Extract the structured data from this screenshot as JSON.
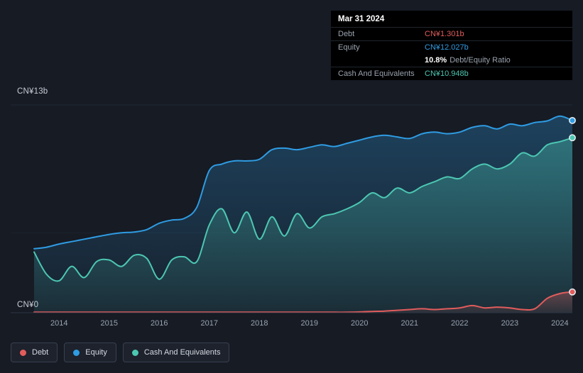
{
  "colors": {
    "background": "#161b24",
    "debt": "#e25c5c",
    "equity": "#2f9ce3",
    "cash": "#4cc7b2",
    "grid": "#222a35",
    "axis_line": "#2e3744",
    "axis_text": "#9aa3af"
  },
  "y_axis": {
    "top_label": "CN¥13b",
    "zero_label": "CN¥0"
  },
  "tooltip": {
    "date": "Mar 31 2024",
    "debt_label": "Debt",
    "debt_value": "CN¥1.301b",
    "equity_label": "Equity",
    "equity_value": "CN¥12.027b",
    "ratio_value": "10.8%",
    "ratio_label": "Debt/Equity Ratio",
    "cash_label": "Cash And Equivalents",
    "cash_value": "CN¥10.948b"
  },
  "legend": {
    "debt": "Debt",
    "equity": "Equity",
    "cash": "Cash And Equivalents"
  },
  "chart_data": {
    "type": "area",
    "title": "Debt to Equity History",
    "ylim": [
      0,
      13
    ],
    "y_unit": "CN¥ billions",
    "grid_values": [
      13,
      5
    ],
    "x_ticks": [
      2014,
      2015,
      2016,
      2017,
      2018,
      2019,
      2020,
      2021,
      2022,
      2023,
      2024
    ],
    "x": [
      2013.5,
      2013.75,
      2014.0,
      2014.25,
      2014.5,
      2014.75,
      2015.0,
      2015.25,
      2015.5,
      2015.75,
      2016.0,
      2016.25,
      2016.5,
      2016.75,
      2017.0,
      2017.25,
      2017.5,
      2017.75,
      2018.0,
      2018.25,
      2018.5,
      2018.75,
      2019.0,
      2019.25,
      2019.5,
      2019.75,
      2020.0,
      2020.25,
      2020.5,
      2020.75,
      2021.0,
      2021.25,
      2021.5,
      2021.75,
      2022.0,
      2022.25,
      2022.5,
      2022.75,
      2023.0,
      2023.25,
      2023.5,
      2023.75,
      2024.0,
      2024.25
    ],
    "series": [
      {
        "name": "Equity",
        "color_key": "equity",
        "values": [
          4.0,
          4.1,
          4.3,
          4.45,
          4.6,
          4.75,
          4.9,
          5.0,
          5.05,
          5.2,
          5.6,
          5.8,
          5.9,
          6.6,
          8.9,
          9.3,
          9.5,
          9.5,
          9.6,
          10.2,
          10.3,
          10.2,
          10.35,
          10.5,
          10.4,
          10.6,
          10.8,
          11.0,
          11.1,
          11.0,
          10.9,
          11.2,
          11.3,
          11.2,
          11.3,
          11.6,
          11.7,
          11.5,
          11.8,
          11.7,
          11.9,
          12.0,
          12.3,
          12.027
        ]
      },
      {
        "name": "Cash And Equivalents",
        "color_key": "cash",
        "values": [
          3.8,
          2.4,
          2.0,
          2.9,
          2.2,
          3.2,
          3.3,
          2.9,
          3.6,
          3.4,
          2.1,
          3.3,
          3.5,
          3.2,
          5.5,
          6.5,
          5.0,
          6.3,
          4.6,
          6.0,
          4.8,
          6.2,
          5.3,
          6.0,
          6.2,
          6.5,
          6.9,
          7.5,
          7.2,
          7.8,
          7.5,
          7.9,
          8.2,
          8.5,
          8.4,
          9.0,
          9.3,
          9.0,
          9.3,
          10.0,
          9.8,
          10.5,
          10.7,
          10.948
        ]
      },
      {
        "name": "Debt",
        "color_key": "debt",
        "values": [
          0.03,
          0.03,
          0.03,
          0.03,
          0.03,
          0.03,
          0.03,
          0.03,
          0.03,
          0.03,
          0.03,
          0.03,
          0.03,
          0.03,
          0.03,
          0.03,
          0.03,
          0.03,
          0.03,
          0.03,
          0.03,
          0.03,
          0.03,
          0.03,
          0.03,
          0.03,
          0.05,
          0.08,
          0.1,
          0.15,
          0.2,
          0.25,
          0.2,
          0.25,
          0.3,
          0.45,
          0.3,
          0.35,
          0.3,
          0.2,
          0.25,
          0.9,
          1.2,
          1.301
        ]
      }
    ]
  }
}
